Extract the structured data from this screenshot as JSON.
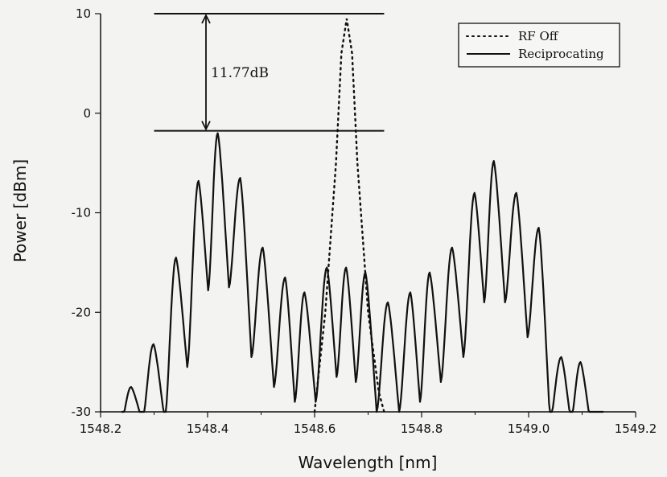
{
  "chart_data": {
    "type": "line",
    "xlabel": "Wavelength [nm]",
    "ylabel": "Power [dBm]",
    "xlim": [
      1548.2,
      1549.2
    ],
    "ylim": [
      -30,
      10
    ],
    "x_ticks": [
      1548.2,
      1548.4,
      1548.6,
      1548.8,
      1549.0,
      1549.2
    ],
    "x_tick_labels": [
      "1548.2",
      "1548.4",
      "1548.6",
      "1548.8",
      "1549.0",
      "1549.2"
    ],
    "y_ticks": [
      -30,
      -20,
      -10,
      0,
      10
    ],
    "y_tick_labels": [
      "-30",
      "-20",
      "-10",
      "0",
      "10"
    ],
    "grid": false,
    "legend_position": "top-right",
    "annotation": {
      "text": "11.77dB",
      "top_level_dbm": 10,
      "bottom_level_dbm": -1.77,
      "x_start": 1548.3,
      "x_end": 1548.73,
      "arrow_x": 1548.4
    },
    "series": [
      {
        "name": "RF Off",
        "style": "dotted",
        "color": "#111111",
        "x": [
          1548.6,
          1548.62,
          1548.64,
          1548.65,
          1548.66,
          1548.67,
          1548.68,
          1548.7,
          1548.72,
          1548.73
        ],
        "y": [
          -30,
          -20,
          -5,
          6,
          9.5,
          6,
          -5,
          -20,
          -28,
          -30
        ]
      },
      {
        "name": "Reciprocating",
        "style": "solid",
        "color": "#111111",
        "x": [
          1548.232,
          1548.254,
          1548.276,
          1548.298,
          1548.32,
          1548.342,
          1548.364,
          1548.386,
          1548.408,
          1548.43,
          1548.452,
          1548.474,
          1548.496,
          1548.518,
          1548.54,
          1548.562,
          1548.584,
          1548.606,
          1548.628,
          1548.65,
          1548.672,
          1548.694,
          1548.716,
          1548.738,
          1548.76,
          1548.782,
          1548.804,
          1548.826,
          1548.848,
          1548.87,
          1548.892,
          1548.914,
          1548.936,
          1548.958,
          1548.98,
          1549.002,
          1549.024,
          1549.046,
          1549.068,
          1549.09,
          1549.112
        ],
        "y": [
          -30,
          -27.5,
          -30,
          -23.5,
          -30,
          -14.5,
          -24,
          -6.5,
          -19,
          -2,
          -18,
          -6.5,
          -24,
          -13.5,
          -30,
          -16.5,
          -30,
          -18,
          -30,
          -15.5,
          -29,
          -15.5,
          -29,
          -16,
          -28,
          -19,
          -26,
          -18,
          -25,
          -14,
          -24,
          -10.5,
          -22,
          -8,
          -22,
          -4.5,
          -22,
          -11.5,
          -28,
          -25,
          -30
        ]
      }
    ],
    "tooth_peaks_x": [
      1548.257,
      1548.299,
      1548.341,
      1548.383,
      1548.419,
      1548.461,
      1548.503,
      1548.545,
      1548.581,
      1548.623,
      1548.659,
      1548.695,
      1548.737,
      1548.779,
      1548.815,
      1548.857,
      1548.899,
      1548.935,
      1548.977,
      1549.019,
      1549.061,
      1549.097
    ],
    "tooth_peaks_y": [
      -27.5,
      -23.2,
      -14.5,
      -6.8,
      -2,
      -6.5,
      -13.5,
      -16.5,
      -18,
      -15.5,
      -15.5,
      -16,
      -19,
      -18,
      -16,
      -13.5,
      -8,
      -4.8,
      -8,
      -11.5,
      -24.5,
      -25
    ]
  }
}
